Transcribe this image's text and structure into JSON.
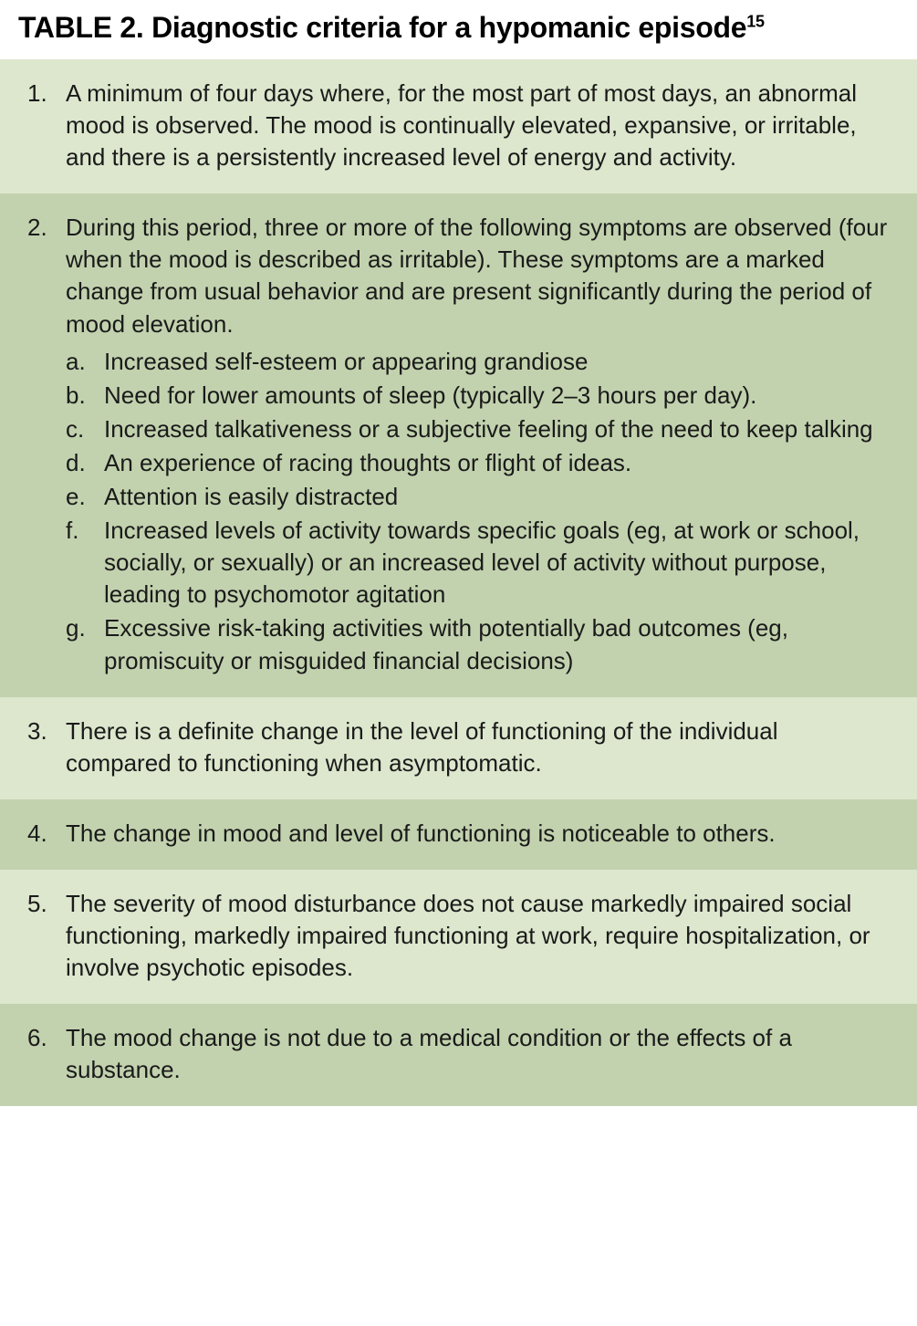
{
  "title": {
    "prefix": "TABLE 2.",
    "text": "Diagnostic criteria for a hypomanic episode",
    "superscript": "15"
  },
  "colors": {
    "row_light": "#dce7cd",
    "row_dark": "#c2d2ae",
    "text": "#1a1a1a",
    "background": "#ffffff"
  },
  "criteria": [
    {
      "num": "1.",
      "text": "A minimum of four days where, for the most part of most days, an abnormal mood is observed. The mood is continually elevated, expansive, or irritable, and there is a persistently increased level of energy and activity.",
      "shade": "light"
    },
    {
      "num": "2.",
      "text": "During this period, three or more of the following symptoms are observed (four when the mood is described as irritable). These symptoms are a marked change from usual behavior and are present significantly during the period of mood elevation.",
      "shade": "dark",
      "subitems": [
        {
          "letter": "a.",
          "text": "Increased self-esteem or appearing grandiose"
        },
        {
          "letter": "b.",
          "text": "Need for lower amounts of sleep (typically 2–3 hours per day)."
        },
        {
          "letter": "c.",
          "text": "Increased talkativeness or a subjective feeling of the need to keep talking"
        },
        {
          "letter": "d.",
          "text": "An experience of racing thoughts or flight of ideas."
        },
        {
          "letter": "e.",
          "text": "Attention is easily distracted"
        },
        {
          "letter": "f.",
          "text": "Increased levels of activity towards specific goals (eg, at work or school, socially, or sexually) or an increased level of activity without purpose, leading to psychomotor agitation"
        },
        {
          "letter": "g.",
          "text": "Excessive risk-taking activities with potentially bad outcomes (eg, promiscuity or misguided financial decisions)"
        }
      ]
    },
    {
      "num": "3.",
      "text": "There is a definite change in the level of functioning of the individual compared to functioning when asymptomatic.",
      "shade": "light"
    },
    {
      "num": "4.",
      "text": "The change in mood and level of functioning is noticeable to others.",
      "shade": "dark"
    },
    {
      "num": "5.",
      "text": "The severity of mood disturbance does not cause markedly impaired social functioning, markedly impaired functioning at work, require hospitalization, or involve psychotic episodes.",
      "shade": "light"
    },
    {
      "num": "6.",
      "text": "The mood change is not due to a medical condition or the effects of a substance.",
      "shade": "dark"
    }
  ]
}
